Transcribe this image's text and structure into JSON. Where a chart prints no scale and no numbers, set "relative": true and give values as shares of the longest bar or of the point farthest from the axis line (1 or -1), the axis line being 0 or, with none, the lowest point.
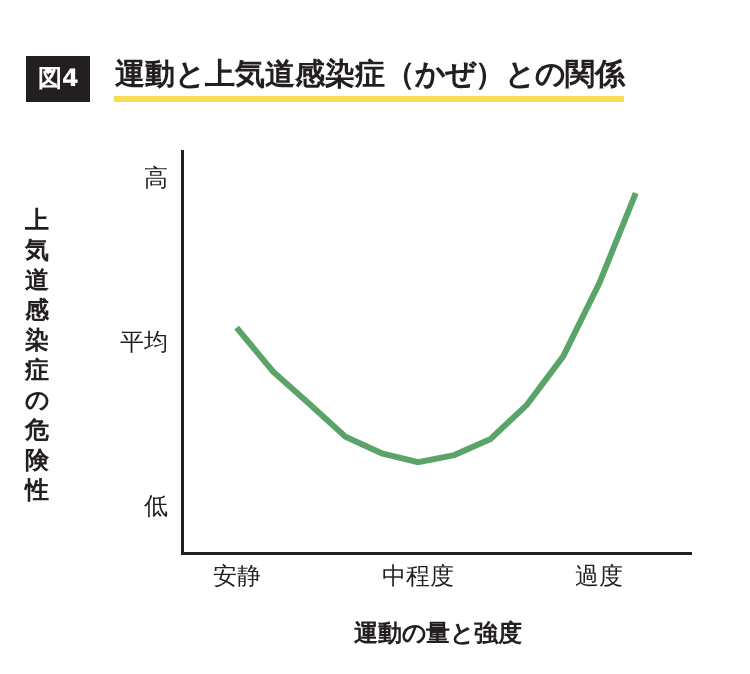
{
  "chart_data": {
    "type": "line",
    "title": "運動と上気道感染症（かぜ）との関係",
    "annotations": [
      "図4",
      "高",
      "平均",
      "低"
    ],
    "xlabel": "運動の量と強度",
    "ylabel": "上気道感染症の危険性",
    "relative": true,
    "categories": [
      "安静",
      null,
      null,
      null,
      null,
      "中程度",
      null,
      null,
      null,
      null,
      "過度",
      null
    ],
    "grid": false,
    "marker": "none",
    "line_style": "solid",
    "series": [
      {
        "color": "#5aa469",
        "values": [
          0.625,
          0.503,
          0.413,
          0.321,
          0.275,
          0.25,
          0.27,
          0.315,
          0.41,
          0.545,
          0.75,
          1
        ]
      }
    ]
  }
}
